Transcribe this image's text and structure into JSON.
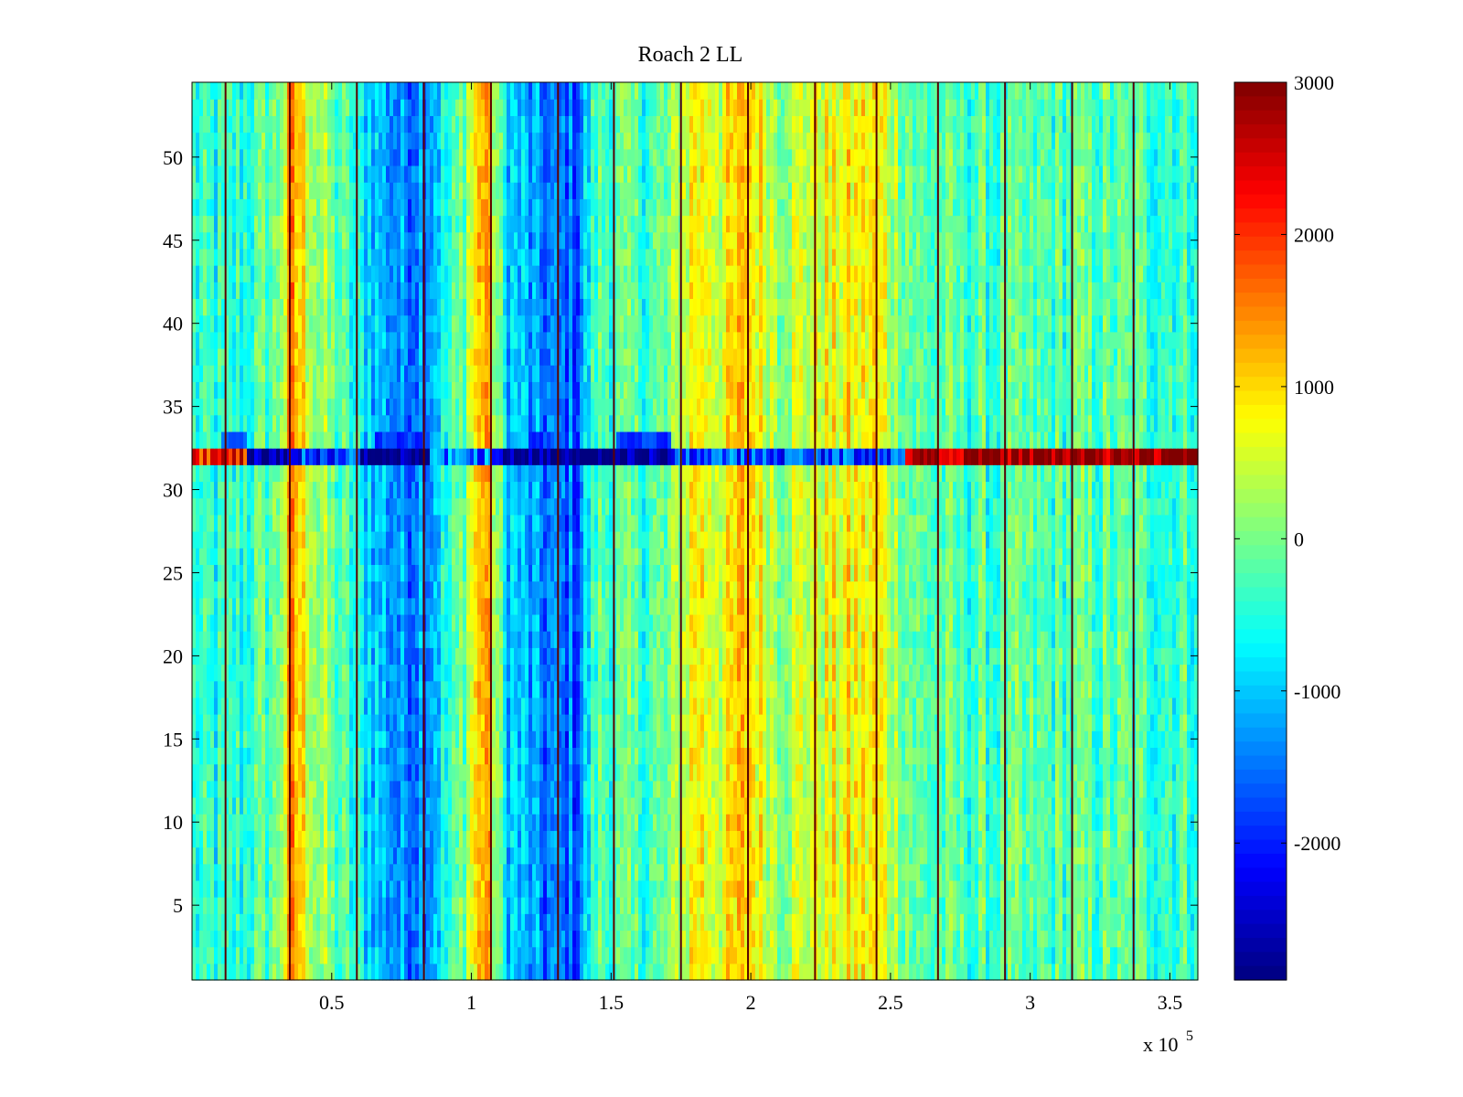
{
  "chart_data": {
    "type": "heatmap",
    "title": "Roach 2 LL",
    "xlabel": "",
    "ylabel": "",
    "x_multiplier_label": "x 10",
    "x_multiplier_exponent": "5",
    "xlim": [
      0.0,
      3.6
    ],
    "ylim": [
      0.5,
      54.5
    ],
    "x_ticks": [
      0.5,
      1,
      1.5,
      2,
      2.5,
      3,
      3.5
    ],
    "x_tick_labels": [
      "0.5",
      "1",
      "1.5",
      "2",
      "2.5",
      "3",
      "3.5"
    ],
    "y_ticks": [
      5,
      10,
      15,
      20,
      25,
      30,
      35,
      40,
      45,
      50
    ],
    "y_tick_labels": [
      "5",
      "10",
      "15",
      "20",
      "25",
      "30",
      "35",
      "40",
      "45",
      "50"
    ],
    "colormap": "jet",
    "color_range": [
      -2900,
      3000
    ],
    "colorbar_ticks": [
      3000,
      2000,
      1000,
      0,
      -1000,
      -2000
    ],
    "colorbar_tick_labels": [
      "3000",
      "2000",
      "1000",
      "0",
      "-1000",
      "-2000"
    ],
    "rows": 54,
    "column_band_profile": {
      "x": [
        0.0,
        0.12,
        0.3,
        0.36,
        0.45,
        0.6,
        0.75,
        0.85,
        0.95,
        1.05,
        1.12,
        1.25,
        1.38,
        1.45,
        1.6,
        1.7,
        1.8,
        1.9,
        1.98,
        2.1,
        2.3,
        2.45,
        2.55,
        2.6,
        2.8,
        3.0,
        3.2,
        3.4,
        3.6
      ],
      "values": [
        -500,
        -600,
        -100,
        1300,
        200,
        -700,
        -1400,
        -1100,
        -300,
        1500,
        -800,
        -1500,
        -1600,
        -200,
        -300,
        -200,
        900,
        600,
        1100,
        300,
        700,
        800,
        100,
        -200,
        -300,
        -300,
        -200,
        -300,
        -300
      ]
    },
    "dark_vertical_lines_x": [
      0.12,
      0.35,
      0.59,
      0.83,
      1.07,
      1.31,
      1.51,
      1.75,
      1.99,
      2.23,
      2.45,
      2.67,
      2.91,
      3.15,
      3.37
    ],
    "anomalous_row": {
      "row": 32,
      "segments": [
        {
          "x_start": 0.0,
          "x_end": 0.2,
          "value": 2200
        },
        {
          "x_start": 0.2,
          "x_end": 0.35,
          "value": -2900
        },
        {
          "x_start": 0.35,
          "x_end": 0.6,
          "value": -1800
        },
        {
          "x_start": 0.6,
          "x_end": 0.85,
          "value": -2900
        },
        {
          "x_start": 0.85,
          "x_end": 1.1,
          "value": -1500
        },
        {
          "x_start": 1.1,
          "x_end": 1.45,
          "value": -2900
        },
        {
          "x_start": 1.45,
          "x_end": 1.72,
          "value": -2900
        },
        {
          "x_start": 1.72,
          "x_end": 2.55,
          "value": -1700
        },
        {
          "x_start": 2.55,
          "x_end": 3.6,
          "value": 2900
        }
      ]
    },
    "row_33_segments": [
      {
        "x_start": 0.1,
        "x_end": 0.2,
        "value": -1600
      },
      {
        "x_start": 0.65,
        "x_end": 0.85,
        "value": -1800
      },
      {
        "x_start": 1.2,
        "x_end": 1.3,
        "value": -1800
      },
      {
        "x_start": 1.52,
        "x_end": 1.72,
        "value": -1900
      }
    ]
  }
}
